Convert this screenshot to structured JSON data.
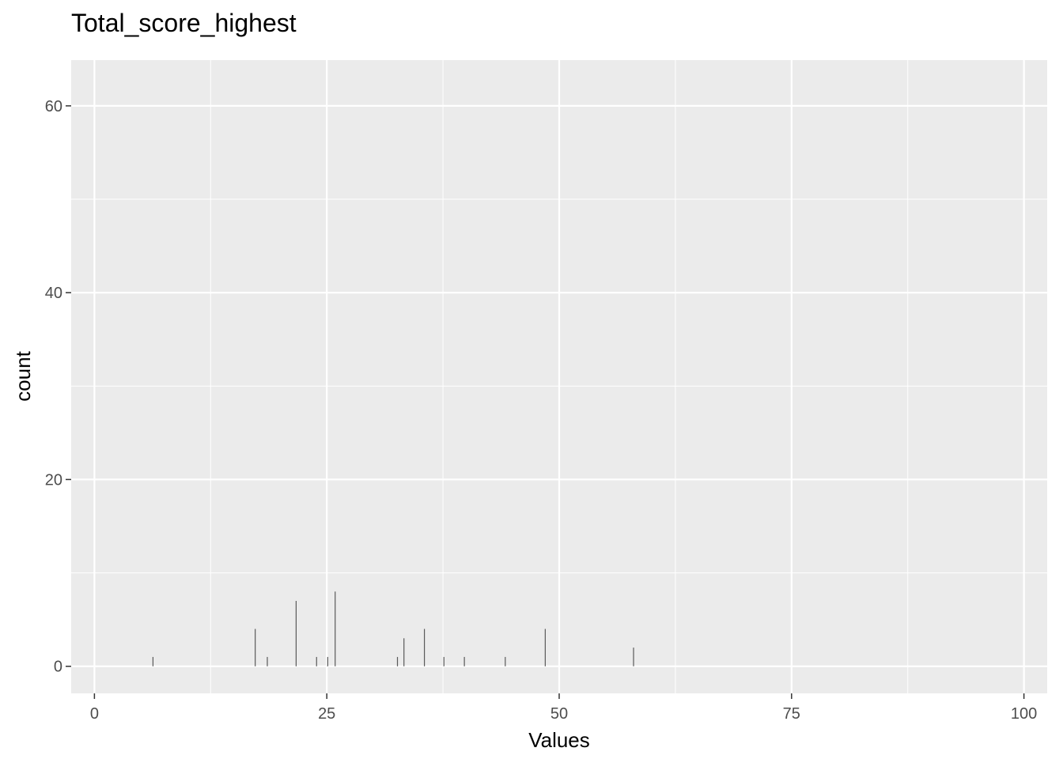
{
  "chart_data": {
    "type": "bar",
    "title": "Total_score_highest",
    "xlabel": "Values",
    "ylabel": "count",
    "xlim": [
      -2.5,
      102.5
    ],
    "ylim": [
      -2.9,
      64.9
    ],
    "x_ticks": [
      0,
      25,
      50,
      75,
      100
    ],
    "y_ticks": [
      0,
      20,
      40,
      60
    ],
    "grid": true,
    "panel_color": "#ebebeb",
    "grid_color": "#ffffff",
    "bar_color": "#595959",
    "x": [
      6.3,
      17.3,
      18.6,
      21.7,
      23.9,
      25.1,
      25.9,
      32.6,
      33.3,
      35.5,
      37.6,
      39.8,
      44.2,
      48.5,
      58.0
    ],
    "values": [
      1,
      4,
      1,
      7,
      1,
      1,
      8,
      1,
      3,
      4,
      1,
      1,
      1,
      4,
      2
    ]
  }
}
